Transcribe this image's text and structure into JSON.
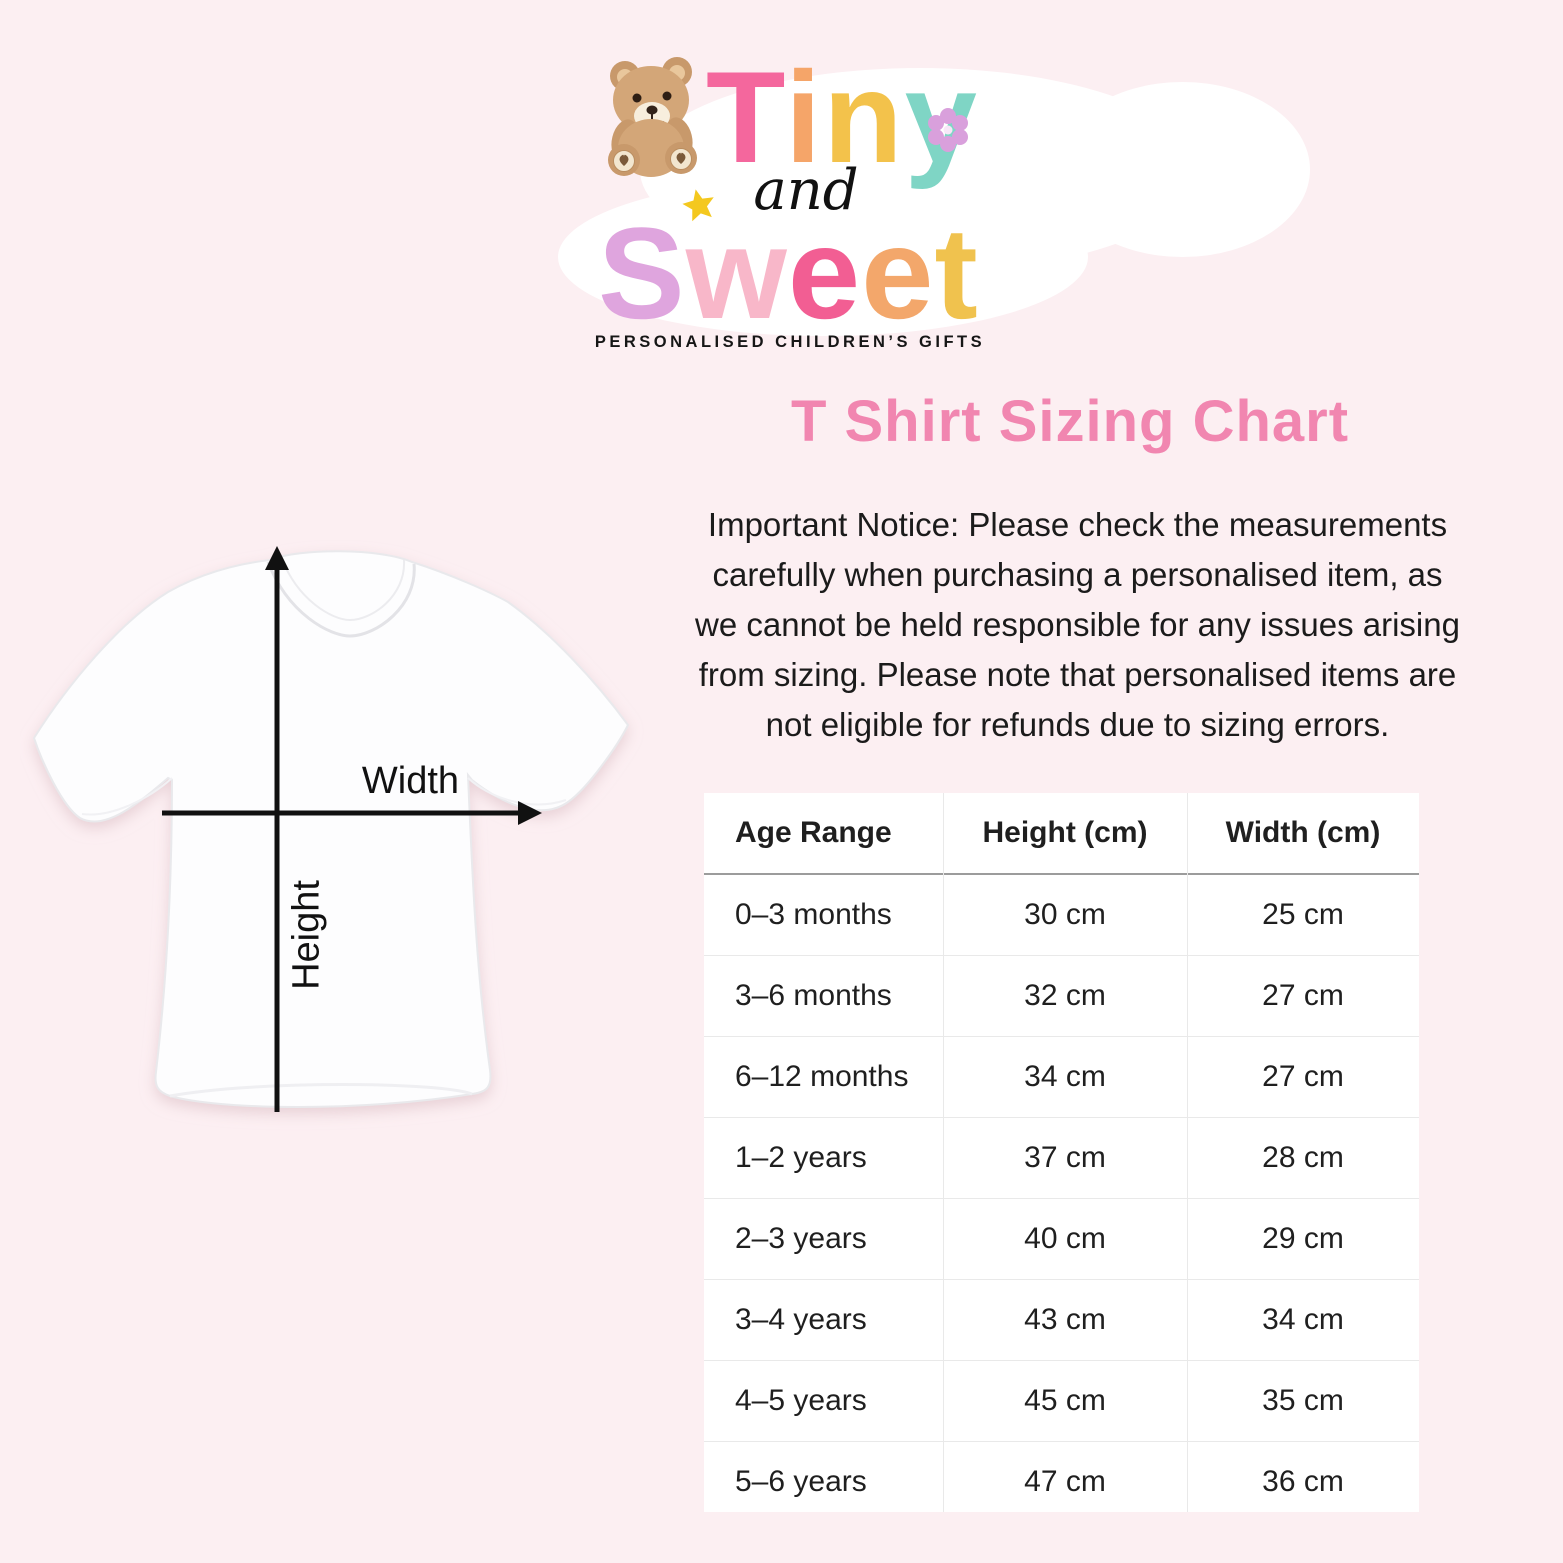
{
  "background_color": "#FCEFF2",
  "logo": {
    "word_top": [
      {
        "ch": "T",
        "color": "#F4679D"
      },
      {
        "ch": "i",
        "color": "#F5A569"
      },
      {
        "ch": "n",
        "color": "#F3C24B"
      },
      {
        "ch": "y",
        "color": "#7FD5C5"
      }
    ],
    "connector": "and",
    "word_bottom": [
      {
        "ch": "S",
        "color": "#DFA5DE"
      },
      {
        "ch": "w",
        "color": "#F8B7C9"
      },
      {
        "ch": "e",
        "color": "#F25E93"
      },
      {
        "ch": "e",
        "color": "#F3A76B"
      },
      {
        "ch": "t",
        "color": "#F0C24E"
      }
    ],
    "tagline": "PERSONALISED CHILDREN’S GIFTS",
    "flower_color": "#D9A0DC",
    "star_color": "#F4C81F"
  },
  "title": {
    "text": "T Shirt Sizing Chart",
    "color": "#F186B0"
  },
  "notice": {
    "lines": [
      "Important Notice: Please check the measurements",
      "carefully when purchasing a personalised item, as",
      "we cannot be held responsible for any issues arising",
      "from sizing. Please note that personalised items are",
      "not eligible for refunds due to sizing errors."
    ]
  },
  "diagram": {
    "width_label": "Width",
    "height_label": "Height"
  },
  "size_table": {
    "headers": [
      "Age Range",
      "Height (cm)",
      "Width (cm)"
    ],
    "rows": [
      {
        "age": "0–3 months",
        "height": "30 cm",
        "width": "25 cm"
      },
      {
        "age": "3–6 months",
        "height": "32 cm",
        "width": "27 cm"
      },
      {
        "age": "6–12 months",
        "height": "34 cm",
        "width": "27 cm"
      },
      {
        "age": "1–2 years",
        "height": "37 cm",
        "width": "28 cm"
      },
      {
        "age": "2–3 years",
        "height": "40 cm",
        "width": "29 cm"
      },
      {
        "age": "3–4 years",
        "height": "43 cm",
        "width": "34 cm"
      },
      {
        "age": "4–5 years",
        "height": "45 cm",
        "width": "35 cm"
      },
      {
        "age": "5–6 years",
        "height": "47 cm",
        "width": "36 cm"
      }
    ]
  }
}
